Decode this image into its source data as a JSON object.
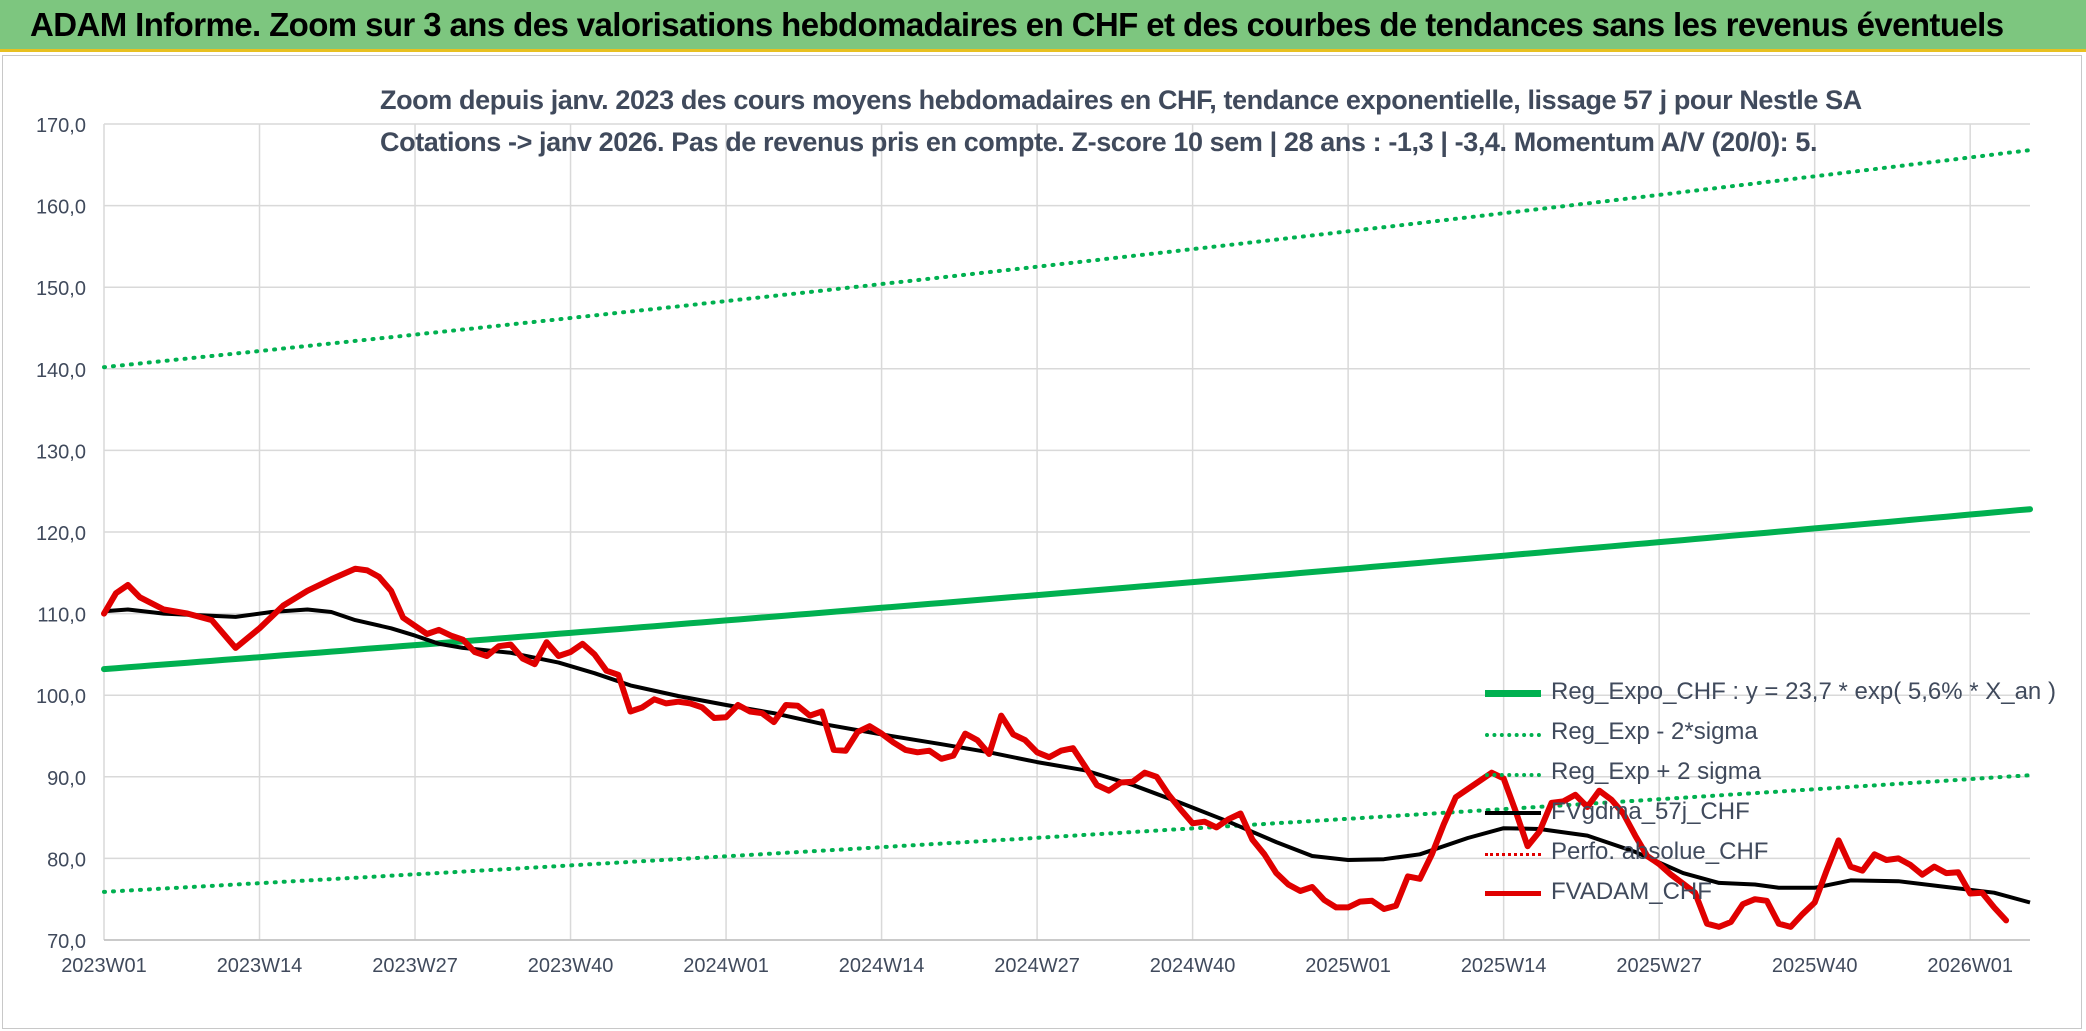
{
  "banner": {
    "title": "ADAM Informe. Zoom sur 3 ans des valorisations hebdomadaires en CHF et des courbes de tendances sans les revenus éventuels"
  },
  "colors": {
    "banner_bg": "#7dc67f",
    "trend_green": "#00b050",
    "fvadam_red": "#e00000",
    "fvgdma_black": "#000000",
    "grid": "#d9d9d9"
  },
  "chart_data": {
    "type": "line",
    "title_lines": [
      "Zoom depuis janv. 2023 des cours moyens hebdomadaires en CHF, tendance exponentielle, lissage 57 j pour Nestle SA",
      "Cotations -> janv 2026. Pas de revenus pris en compte. Z-score 10 sem | 28 ans : -1,3 | -3,4. Momentum A/V (20/0): 5."
    ],
    "xlabel": "",
    "ylabel": "",
    "ylim": [
      70,
      170
    ],
    "y_ticks": [
      "70,0",
      "80,0",
      "90,0",
      "100,0",
      "110,0",
      "120,0",
      "130,0",
      "140,0",
      "150,0",
      "160,0",
      "170,0"
    ],
    "x_tick_labels": [
      "2023W01",
      "2023W14",
      "2023W27",
      "2023W40",
      "2024W01",
      "2024W14",
      "2024W27",
      "2024W40",
      "2025W01",
      "2025W14",
      "2025W27",
      "2025W40",
      "2026W01"
    ],
    "x_tick_weeks": [
      0,
      13,
      26,
      39,
      52,
      65,
      78,
      91,
      104,
      117,
      130,
      143,
      156
    ],
    "x_range_weeks": [
      0,
      161
    ],
    "grid": true,
    "legend_position": "lower-right",
    "series": [
      {
        "name": "Reg_Expo_CHF : y = 23,7 * exp( 5,6% *  X_an )",
        "style": "solid-thick",
        "color": "#00b050",
        "x_weeks": [
          0,
          161
        ],
        "values": [
          103.2,
          122.8
        ],
        "curve": "exponential"
      },
      {
        "name": "Reg_Exp - 2*sigma",
        "style": "dotted",
        "color": "#00b050",
        "x_weeks": [
          0,
          161
        ],
        "values": [
          75.9,
          90.2
        ],
        "curve": "exponential"
      },
      {
        "name": "Reg_Exp + 2 sigma",
        "style": "dotted",
        "color": "#00b050",
        "x_weeks": [
          0,
          161
        ],
        "values": [
          140.2,
          166.8
        ],
        "curve": "exponential"
      },
      {
        "name": "FVgdma_57j_CHF",
        "style": "solid",
        "color": "#000000",
        "points": [
          [
            0,
            110.3
          ],
          [
            2,
            110.5
          ],
          [
            5,
            110.0
          ],
          [
            8,
            109.8
          ],
          [
            11,
            109.6
          ],
          [
            14,
            110.2
          ],
          [
            17,
            110.5
          ],
          [
            19,
            110.2
          ],
          [
            21,
            109.2
          ],
          [
            24,
            108.2
          ],
          [
            26,
            107.3
          ],
          [
            28,
            106.3
          ],
          [
            30,
            105.8
          ],
          [
            34,
            105.2
          ],
          [
            38,
            104.0
          ],
          [
            41,
            102.7
          ],
          [
            44,
            101.2
          ],
          [
            48,
            99.9
          ],
          [
            52,
            98.8
          ],
          [
            56,
            97.8
          ],
          [
            60,
            96.5
          ],
          [
            65,
            95.2
          ],
          [
            70,
            94.0
          ],
          [
            74,
            93.0
          ],
          [
            78,
            91.8
          ],
          [
            82,
            90.8
          ],
          [
            86,
            89.0
          ],
          [
            90,
            86.8
          ],
          [
            94,
            84.5
          ],
          [
            98,
            82.0
          ],
          [
            101,
            80.3
          ],
          [
            104,
            79.8
          ],
          [
            107,
            79.9
          ],
          [
            110,
            80.5
          ],
          [
            114,
            82.5
          ],
          [
            117,
            83.7
          ],
          [
            120,
            83.6
          ],
          [
            124,
            82.8
          ],
          [
            128,
            80.8
          ],
          [
            132,
            78.2
          ],
          [
            135,
            77.0
          ],
          [
            138,
            76.8
          ],
          [
            140,
            76.4
          ],
          [
            143,
            76.4
          ],
          [
            146,
            77.3
          ],
          [
            150,
            77.2
          ],
          [
            154,
            76.5
          ],
          [
            158,
            75.8
          ],
          [
            161,
            74.6
          ]
        ]
      },
      {
        "name": "Perfo. absolue_CHF",
        "style": "dotted",
        "color": "#e00000",
        "points": []
      },
      {
        "name": "FVADAM_CHF",
        "style": "solid-thick",
        "color": "#e00000",
        "points": [
          [
            0,
            110.0
          ],
          [
            1,
            112.5
          ],
          [
            2,
            113.5
          ],
          [
            3,
            112.0
          ],
          [
            5,
            110.5
          ],
          [
            7,
            110.0
          ],
          [
            9,
            109.2
          ],
          [
            11,
            105.8
          ],
          [
            13,
            108.2
          ],
          [
            15,
            111.0
          ],
          [
            17,
            112.8
          ],
          [
            19,
            114.2
          ],
          [
            21,
            115.5
          ],
          [
            22,
            115.3
          ],
          [
            23,
            114.5
          ],
          [
            24,
            112.8
          ],
          [
            25,
            109.5
          ],
          [
            26,
            108.5
          ],
          [
            27,
            107.5
          ],
          [
            28,
            108.0
          ],
          [
            29,
            107.3
          ],
          [
            30,
            106.8
          ],
          [
            31,
            105.3
          ],
          [
            32,
            104.8
          ],
          [
            33,
            106.0
          ],
          [
            34,
            106.2
          ],
          [
            35,
            104.5
          ],
          [
            36,
            103.8
          ],
          [
            37,
            106.5
          ],
          [
            38,
            104.8
          ],
          [
            39,
            105.3
          ],
          [
            40,
            106.3
          ],
          [
            41,
            105.0
          ],
          [
            42,
            103.0
          ],
          [
            43,
            102.5
          ],
          [
            44,
            98.0
          ],
          [
            45,
            98.5
          ],
          [
            46,
            99.5
          ],
          [
            47,
            99.0
          ],
          [
            48,
            99.2
          ],
          [
            49,
            99.0
          ],
          [
            50,
            98.5
          ],
          [
            51,
            97.2
          ],
          [
            52,
            97.3
          ],
          [
            53,
            98.8
          ],
          [
            54,
            98.0
          ],
          [
            55,
            97.8
          ],
          [
            56,
            96.7
          ],
          [
            57,
            98.8
          ],
          [
            58,
            98.7
          ],
          [
            59,
            97.5
          ],
          [
            60,
            98.0
          ],
          [
            61,
            93.3
          ],
          [
            62,
            93.2
          ],
          [
            63,
            95.5
          ],
          [
            64,
            96.2
          ],
          [
            65,
            95.3
          ],
          [
            66,
            94.2
          ],
          [
            67,
            93.3
          ],
          [
            68,
            93.0
          ],
          [
            69,
            93.2
          ],
          [
            70,
            92.2
          ],
          [
            71,
            92.6
          ],
          [
            72,
            95.3
          ],
          [
            73,
            94.5
          ],
          [
            74,
            92.8
          ],
          [
            75,
            97.5
          ],
          [
            76,
            95.2
          ],
          [
            77,
            94.5
          ],
          [
            78,
            93.0
          ],
          [
            79,
            92.4
          ],
          [
            80,
            93.2
          ],
          [
            81,
            93.5
          ],
          [
            82,
            91.3
          ],
          [
            83,
            89.0
          ],
          [
            84,
            88.3
          ],
          [
            85,
            89.3
          ],
          [
            86,
            89.4
          ],
          [
            87,
            90.5
          ],
          [
            88,
            90.0
          ],
          [
            89,
            87.8
          ],
          [
            90,
            86.0
          ],
          [
            91,
            84.3
          ],
          [
            92,
            84.5
          ],
          [
            93,
            83.8
          ],
          [
            94,
            84.8
          ],
          [
            95,
            85.5
          ],
          [
            96,
            82.3
          ],
          [
            97,
            80.5
          ],
          [
            98,
            78.2
          ],
          [
            99,
            76.8
          ],
          [
            100,
            76.0
          ],
          [
            101,
            76.5
          ],
          [
            102,
            74.9
          ],
          [
            103,
            74.0
          ],
          [
            104,
            74.0
          ],
          [
            105,
            74.7
          ],
          [
            106,
            74.8
          ],
          [
            107,
            73.8
          ],
          [
            108,
            74.2
          ],
          [
            109,
            77.8
          ],
          [
            110,
            77.5
          ],
          [
            111,
            80.5
          ],
          [
            112,
            84.2
          ],
          [
            113,
            87.5
          ],
          [
            114,
            88.5
          ],
          [
            115,
            89.5
          ],
          [
            116,
            90.5
          ],
          [
            117,
            89.8
          ],
          [
            118,
            85.8
          ],
          [
            119,
            81.5
          ],
          [
            120,
            83.3
          ],
          [
            121,
            86.8
          ],
          [
            122,
            87.0
          ],
          [
            123,
            87.8
          ],
          [
            124,
            86.3
          ],
          [
            125,
            88.3
          ],
          [
            126,
            87.2
          ],
          [
            127,
            85.5
          ],
          [
            128,
            82.8
          ],
          [
            129,
            80.3
          ],
          [
            130,
            79.3
          ],
          [
            131,
            78.0
          ],
          [
            132,
            76.9
          ],
          [
            133,
            75.8
          ],
          [
            134,
            72.0
          ],
          [
            135,
            71.6
          ],
          [
            136,
            72.2
          ],
          [
            137,
            74.4
          ],
          [
            138,
            75.0
          ],
          [
            139,
            74.8
          ],
          [
            140,
            72.0
          ],
          [
            141,
            71.6
          ],
          [
            142,
            73.2
          ],
          [
            143,
            74.6
          ],
          [
            144,
            78.5
          ],
          [
            145,
            82.2
          ],
          [
            146,
            79.0
          ],
          [
            147,
            78.5
          ],
          [
            148,
            80.5
          ],
          [
            149,
            79.8
          ],
          [
            150,
            80.0
          ],
          [
            151,
            79.2
          ],
          [
            152,
            78.0
          ],
          [
            153,
            79.0
          ],
          [
            154,
            78.2
          ],
          [
            155,
            78.3
          ],
          [
            156,
            75.7
          ],
          [
            157,
            75.8
          ],
          [
            158,
            74.0
          ],
          [
            159,
            72.4
          ]
        ]
      }
    ]
  }
}
